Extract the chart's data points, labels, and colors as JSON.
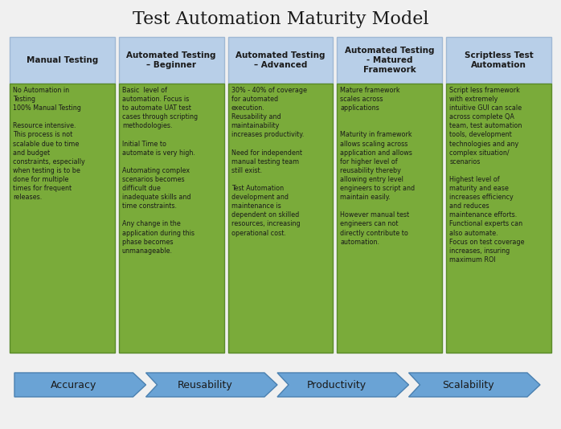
{
  "title": "Test Automation Maturity Model",
  "title_fontsize": 16,
  "background_color": "#f0f0f0",
  "header_bg": "#b8cfe8",
  "body_bg": "#7aab3a",
  "header_text_color": "#1a1a1a",
  "body_text_color": "#1a1a1a",
  "arrow_color": "#6aa3d5",
  "arrow_edge_color": "#4a80b0",
  "columns": [
    {
      "header": "Manual Testing",
      "body": "No Automation in\nTesting\n100% Manual Testing\n\nResource intensive.\nThis process is not\nscalable due to time\nand budget\nconstraints, especially\nwhen testing is to be\ndone for multiple\ntimes for frequent\nreleases."
    },
    {
      "header": "Automated Testing\n– Beginner",
      "body": "Basic  level of\nautomation. Focus is\nto automate UAT test\ncases through scripting\nmethodologies.\n\nInitial Time to\nautomate is very high.\n\nAutomating complex\nscenarios becomes\ndifficult due\ninadequate skills and\ntime constraints.\n\nAny change in the\napplication during this\nphase becomes\nunmanageable."
    },
    {
      "header": "Automated Testing\n– Advanced",
      "body": "30% - 40% of coverage\nfor automated\nexecution.\nReusability and\nmaintainability\nincreases productivity.\n\nNeed for independent\nmanual testing team\nstill exist.\n\nTest Automation\ndevelopment and\nmaintenance is\ndependent on skilled\nresources, increasing\noperational cost."
    },
    {
      "header": "Automated Testing\n- Matured\nFramework",
      "body": "Mature framework\nscales across\napplications\n\n\nMaturity in framework\nallows scaling across\napplication and allows\nfor higher level of\nreusability thereby\nallowing entry level\nengineers to script and\nmaintain easily.\n\nHowever manual test\nengineers can not\ndirectly contribute to\nautomation."
    },
    {
      "header": "Scriptless Test\nAutomation",
      "body": "Script less framework\nwith extremely\nintuitive GUI can scale\nacross complete QA\nteam, test automation\ntools, development\ntechnologies and any\ncomplex situation/\nscenarios\n\nHighest level of\nmaturity and ease\nincreases efficiency\nand reduces\nmaintenance efforts.\nFunctional experts can\nalso automate.\nFocus on test coverage\nincreases, insuring\nmaximum ROI"
    }
  ],
  "arrows": [
    "Accuracy",
    "Reusability",
    "Productivity",
    "Scalability"
  ]
}
